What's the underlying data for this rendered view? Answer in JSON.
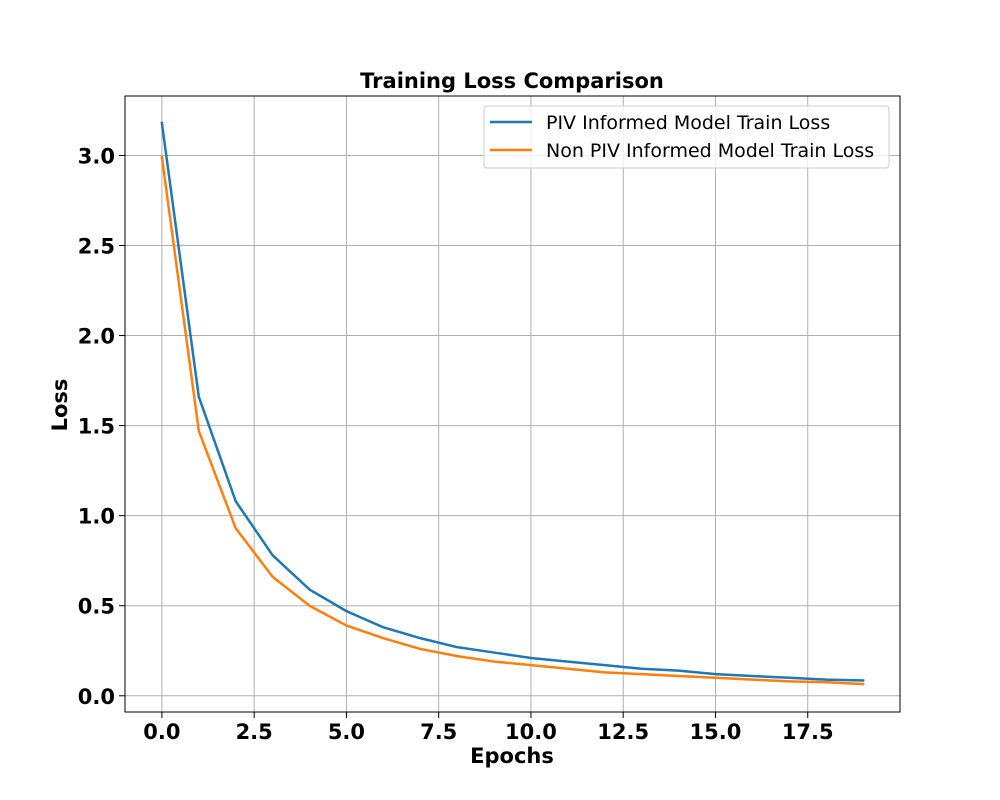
{
  "chart_data": {
    "type": "line",
    "title": "Training Loss Comparison",
    "xlabel": "Epochs",
    "ylabel": "Loss",
    "xlim": [
      -1,
      20
    ],
    "ylim": [
      -0.09,
      3.33
    ],
    "xticks": [
      0.0,
      2.5,
      5.0,
      7.5,
      10.0,
      12.5,
      15.0,
      17.5
    ],
    "xtick_labels": [
      "0.0",
      "2.5",
      "5.0",
      "7.5",
      "10.0",
      "12.5",
      "15.0",
      "17.5"
    ],
    "yticks": [
      0.0,
      0.5,
      1.0,
      1.5,
      2.0,
      2.5,
      3.0
    ],
    "ytick_labels": [
      "0.0",
      "0.5",
      "1.0",
      "1.5",
      "2.0",
      "2.5",
      "3.0"
    ],
    "grid": true,
    "legend_position": "top-right",
    "x": [
      0,
      1,
      2,
      3,
      4,
      5,
      6,
      7,
      8,
      9,
      10,
      11,
      12,
      13,
      14,
      15,
      16,
      17,
      18,
      19
    ],
    "series": [
      {
        "name": "PIV Informed Model Train Loss",
        "color": "#1f77b4",
        "values": [
          3.18,
          1.66,
          1.08,
          0.78,
          0.59,
          0.47,
          0.38,
          0.32,
          0.27,
          0.24,
          0.21,
          0.19,
          0.17,
          0.15,
          0.14,
          0.12,
          0.11,
          0.1,
          0.09,
          0.085
        ]
      },
      {
        "name": "Non PIV Informed Model Train Loss",
        "color": "#ff7f0e",
        "values": [
          2.99,
          1.47,
          0.93,
          0.66,
          0.5,
          0.39,
          0.32,
          0.26,
          0.22,
          0.19,
          0.17,
          0.15,
          0.13,
          0.12,
          0.11,
          0.1,
          0.09,
          0.08,
          0.075,
          0.065
        ]
      }
    ]
  }
}
